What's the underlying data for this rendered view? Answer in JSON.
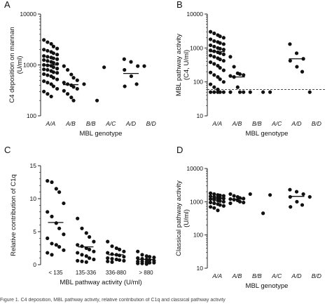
{
  "caption": "Figure 1. C4 deposition, MBL pathway activity, relative contribution of C1q and classical pathway activity",
  "chart_data": [
    {
      "panel": "A",
      "type": "scatter",
      "yscale": "log",
      "ylim": [
        100,
        10000
      ],
      "yticks": [
        100,
        1000,
        10000
      ],
      "ytick_labels": [
        "100",
        "1000",
        "10000"
      ],
      "ylabel": "C4 deposition on mannan\n(U/ml)",
      "xlabel": "MBL genotype",
      "categories": [
        "A/A",
        "A/B",
        "B/B",
        "A/C",
        "A/D",
        "B/D"
      ],
      "values": [
        [
          3100,
          2800,
          2600,
          2300,
          2100,
          2000,
          1900,
          1800,
          1700,
          1600,
          1500,
          1450,
          1400,
          1350,
          1300,
          1250,
          1200,
          1150,
          1100,
          1050,
          1000,
          980,
          960,
          900,
          850,
          820,
          800,
          760,
          720,
          700,
          660,
          630,
          600,
          560,
          520,
          480,
          450,
          420,
          380,
          340,
          300,
          270,
          240
        ],
        [
          950,
          800,
          650,
          560,
          500,
          450,
          420,
          400,
          370,
          340,
          310,
          270,
          230,
          200
        ],
        [
          420,
          200
        ],
        [
          900
        ],
        [
          1300,
          1150,
          950,
          800,
          600,
          420,
          380
        ],
        [
          950
        ]
      ],
      "medians": [
        1000,
        410,
        null,
        null,
        680,
        null
      ]
    },
    {
      "panel": "B",
      "type": "scatter",
      "yscale": "log",
      "ylim": [
        10,
        10000
      ],
      "yticks": [
        10,
        100,
        1000,
        10000
      ],
      "ytick_labels": [
        "10",
        "100",
        "1000",
        "10000"
      ],
      "ylabel": "MBL pathway activity\n(C4, U/ml)",
      "xlabel": "MBL genotype",
      "categories": [
        "A/A",
        "A/B",
        "B/B",
        "A/C",
        "A/D",
        "B/D"
      ],
      "values": [
        [
          3000,
          2700,
          2400,
          2200,
          2000,
          1800,
          1600,
          1500,
          1400,
          1300,
          1200,
          1100,
          1000,
          950,
          900,
          850,
          800,
          750,
          700,
          650,
          600,
          550,
          500,
          460,
          420,
          380,
          340,
          300,
          260,
          220,
          190,
          160,
          140,
          120,
          100,
          85,
          70,
          60,
          50,
          50,
          50,
          50,
          50
        ],
        [
          550,
          280,
          180,
          170,
          160,
          150,
          140,
          70,
          50,
          50,
          50
        ],
        [
          50,
          50
        ],
        [
          50
        ],
        [
          1300,
          700,
          480,
          420,
          280,
          200
        ],
        [
          50
        ]
      ],
      "medians": [
        780,
        140,
        null,
        null,
        480,
        null
      ],
      "reference_line": 60
    },
    {
      "panel": "C",
      "type": "scatter",
      "yscale": "linear",
      "ylim": [
        0,
        15
      ],
      "yticks": [
        0,
        5,
        10,
        15
      ],
      "ytick_labels": [
        "0",
        "5",
        "10",
        "15"
      ],
      "ylabel": "Relative contribution of C1q",
      "xlabel": "MBL pathway activity (U/ml)",
      "categories": [
        "< 135",
        "135-336",
        "336-880",
        "> 880"
      ],
      "values": [
        [
          12.7,
          12.5,
          11.5,
          11.0,
          9.3,
          8.0,
          7.3,
          6.3,
          5.5,
          4.6,
          4.0,
          3.2,
          3.0,
          2.7,
          2.2,
          1.8,
          1.5
        ],
        [
          7.0,
          5.5,
          4.8,
          4.2,
          3.5,
          3.0,
          2.8,
          2.5,
          2.3,
          2.0,
          1.8,
          1.5,
          1.3,
          1.0,
          0.8,
          0.6,
          0.5,
          0.4
        ],
        [
          3.5,
          2.8,
          2.5,
          2.3,
          2.0,
          1.8,
          1.6,
          1.5,
          1.4,
          1.2,
          1.0,
          0.9,
          0.8,
          0.7,
          0.6,
          0.5,
          0.4
        ],
        [
          2.0,
          1.5,
          1.3,
          1.2,
          1.1,
          1.0,
          0.9,
          0.8,
          0.7,
          0.6,
          0.5,
          0.5,
          0.4,
          0.3,
          0.3,
          0.2,
          0.2,
          0.1
        ]
      ],
      "medians": [
        6.4,
        2.7,
        1.5,
        0.8
      ]
    },
    {
      "panel": "D",
      "type": "scatter",
      "yscale": "log",
      "ylim": [
        10,
        10000
      ],
      "yticks": [
        10,
        100,
        1000,
        10000
      ],
      "ytick_labels": [
        "10",
        "100",
        "1000",
        "10000"
      ],
      "ylabel": "Classical pathway activity\n(U/ml)",
      "xlabel": "MBL genotype",
      "categories": [
        "A/A",
        "A/B",
        "B/B",
        "A/C",
        "A/D",
        "B/D"
      ],
      "values": [
        [
          1800,
          1700,
          1600,
          1550,
          1500,
          1450,
          1400,
          1350,
          1300,
          1250,
          1200,
          1150,
          1100,
          1050,
          1000,
          950,
          900,
          850,
          800,
          750,
          700,
          650,
          550
        ],
        [
          1700,
          1500,
          1400,
          1300,
          1250,
          1200,
          1150,
          1100,
          1000,
          950,
          900
        ],
        [
          1700,
          450
        ],
        [
          1600
        ],
        [
          2300,
          2000,
          1700,
          1400,
          1000,
          800,
          700
        ],
        [
          1400
        ]
      ],
      "medians": [
        1250,
        1200,
        null,
        null,
        1450,
        null
      ]
    }
  ]
}
